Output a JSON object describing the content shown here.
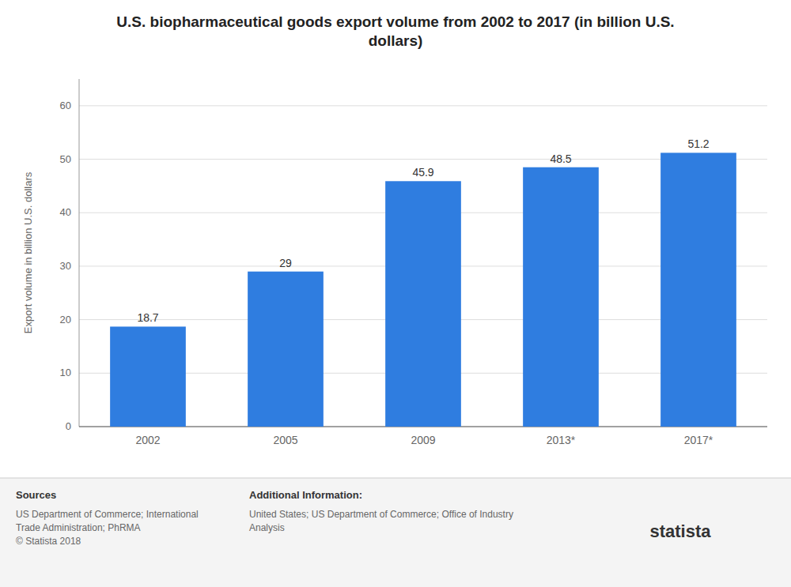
{
  "chart_data": {
    "type": "bar",
    "title": "U.S. biopharmaceutical goods export volume from 2002 to 2017 (in billion U.S.\ndollars)",
    "categories": [
      "2002",
      "2005",
      "2009",
      "2013*",
      "2017*"
    ],
    "values": [
      18.7,
      29.0,
      45.9,
      48.5,
      51.2
    ],
    "color": "#2f7de0",
    "ylabel": "Export volume in billion U.S. dollars",
    "ylim": [
      0,
      65
    ],
    "yticks": [
      0,
      10,
      20,
      30,
      40,
      50,
      60
    ],
    "grid": true,
    "data_labels": true,
    "annotations": [
      "Sources",
      "US Department of Commerce; International\nTrade Administration; PhRMA\n© Statista 2018",
      "Additional Information:",
      "United States; US Department of Commerce; Office of Industry\nAnalysis",
      "statista"
    ]
  }
}
